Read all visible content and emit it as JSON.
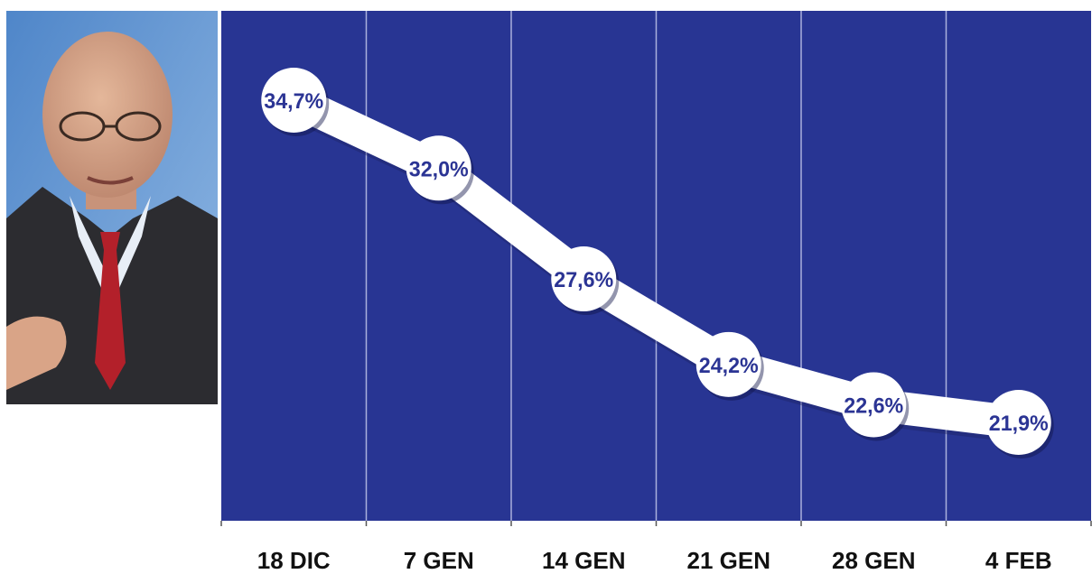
{
  "colors": {
    "plot_background": "#283593",
    "line": "#ffffff",
    "label_text": "#2b3494",
    "axis_text": "#111111",
    "gridline": "#aab0dd"
  },
  "photo": {
    "icon": "man-in-suit-portrait"
  },
  "chart_data": {
    "type": "line",
    "categories": [
      "18 DIC",
      "7 GEN",
      "14 GEN",
      "21 GEN",
      "28 GEN",
      "4 FEB"
    ],
    "values": [
      34.7,
      32.0,
      27.6,
      24.2,
      22.6,
      21.9
    ],
    "value_labels": [
      "34,7%",
      "32,0%",
      "27,6%",
      "24,2%",
      "22,6%",
      "21,9%"
    ],
    "title": "",
    "xlabel": "",
    "ylabel": "",
    "grid": "vertical",
    "legend": "none"
  }
}
